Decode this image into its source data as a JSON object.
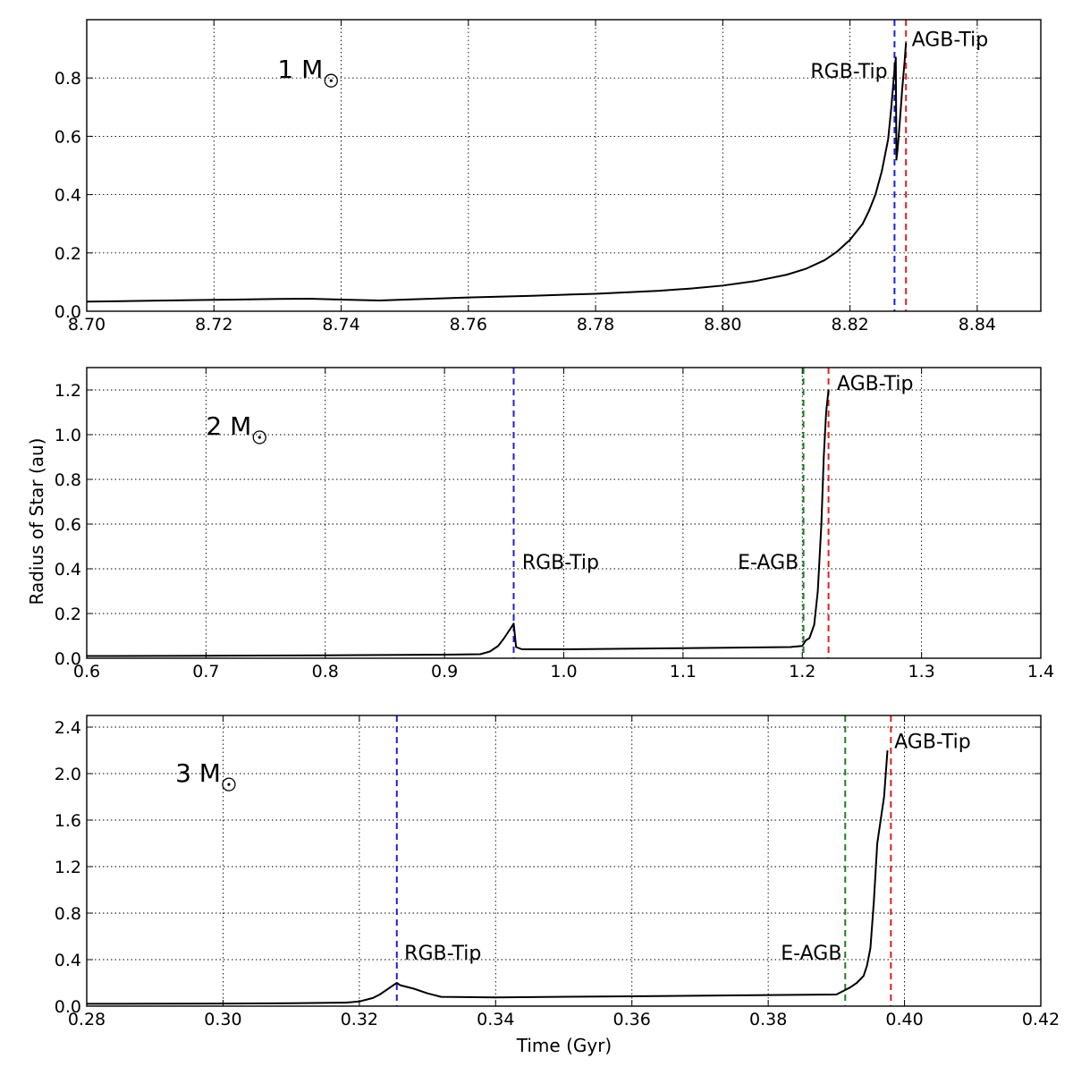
{
  "figure": {
    "ylabel": "Radius of Star (au)",
    "xlabel": "Time (Gyr)"
  },
  "colors": {
    "rgb_tip": "#1f1fd6",
    "e_agb": "#208020",
    "agb_tip": "#e01f1f",
    "curve": "#000000"
  },
  "chart_data": [
    {
      "type": "line",
      "mass_label": "1 M",
      "mass_symbol": "sun-symbol",
      "xlim": [
        8.7,
        8.85
      ],
      "ylim": [
        0.0,
        1.0
      ],
      "xticks": [
        8.7,
        8.72,
        8.74,
        8.76,
        8.78,
        8.8,
        8.82,
        8.84
      ],
      "xtick_labels": [
        "8.70",
        "8.72",
        "8.74",
        "8.76",
        "8.78",
        "8.80",
        "8.82",
        "8.84"
      ],
      "yticks": [
        0.0,
        0.2,
        0.4,
        0.6,
        0.8
      ],
      "ytick_labels": [
        "0.0",
        "0.2",
        "0.4",
        "0.6",
        "0.8"
      ],
      "grid": true,
      "series": [
        {
          "x": [
            8.7,
            8.71,
            8.72,
            8.73,
            8.735,
            8.74,
            8.746,
            8.75,
            8.76,
            8.77,
            8.78,
            8.79,
            8.795,
            8.8,
            8.805,
            8.81,
            8.813,
            8.816,
            8.818,
            8.82,
            8.822,
            8.823,
            8.824,
            8.825,
            8.826,
            8.8265,
            8.827,
            8.8272,
            8.8273,
            8.8275,
            8.8278,
            8.8282,
            8.8286,
            8.8288
          ],
          "y": [
            0.033,
            0.036,
            0.039,
            0.042,
            0.043,
            0.04,
            0.037,
            0.04,
            0.047,
            0.053,
            0.06,
            0.07,
            0.078,
            0.088,
            0.103,
            0.125,
            0.145,
            0.175,
            0.205,
            0.245,
            0.3,
            0.345,
            0.4,
            0.48,
            0.59,
            0.7,
            0.83,
            0.87,
            0.52,
            0.56,
            0.64,
            0.76,
            0.86,
            0.92
          ]
        }
      ],
      "vlines": [
        {
          "name": "RGB-Tip",
          "x": 8.827,
          "color_key": "rgb_tip"
        },
        {
          "name": "AGB-Tip",
          "x": 8.8288,
          "color_key": "agb_tip"
        }
      ],
      "annotations": [
        {
          "text": "RGB-Tip",
          "x": 8.8259,
          "y": 0.8,
          "anchor": "end"
        },
        {
          "text": "AGB-Tip",
          "x": 8.8297,
          "y": 0.91,
          "anchor": "start"
        }
      ],
      "mass_label_pos": {
        "x": 8.73,
        "y": 0.8
      }
    },
    {
      "type": "line",
      "mass_label": "2 M",
      "mass_symbol": "sun-symbol",
      "xlim": [
        0.6,
        1.4
      ],
      "ylim": [
        0.0,
        1.3
      ],
      "xticks": [
        0.6,
        0.7,
        0.8,
        0.9,
        1.0,
        1.1,
        1.2,
        1.3,
        1.4
      ],
      "xtick_labels": [
        "0.6",
        "0.7",
        "0.8",
        "0.9",
        "1.0",
        "1.1",
        "1.2",
        "1.3",
        "1.4"
      ],
      "yticks": [
        0.0,
        0.2,
        0.4,
        0.6,
        0.8,
        1.0,
        1.2
      ],
      "ytick_labels": [
        "0.0",
        "0.2",
        "0.4",
        "0.6",
        "0.8",
        "1.0",
        "1.2"
      ],
      "grid": true,
      "series": [
        {
          "x": [
            0.6,
            0.7,
            0.8,
            0.9,
            0.93,
            0.938,
            0.945,
            0.95,
            0.955,
            0.958,
            0.96,
            0.965,
            1.0,
            1.1,
            1.19,
            1.2,
            1.203,
            1.206,
            1.21,
            1.213,
            1.216,
            1.218,
            1.22,
            1.222
          ],
          "y": [
            0.01,
            0.011,
            0.013,
            0.016,
            0.018,
            0.03,
            0.055,
            0.09,
            0.13,
            0.155,
            0.05,
            0.04,
            0.04,
            0.045,
            0.05,
            0.055,
            0.08,
            0.09,
            0.15,
            0.3,
            0.6,
            0.9,
            1.1,
            1.2
          ]
        }
      ],
      "vlines": [
        {
          "name": "RGB-Tip",
          "x": 0.958,
          "color_key": "rgb_tip"
        },
        {
          "name": "E-AGB",
          "x": 1.201,
          "color_key": "e_agb"
        },
        {
          "name": "AGB-Tip",
          "x": 1.222,
          "color_key": "agb_tip"
        }
      ],
      "annotations": [
        {
          "text": "RGB-Tip",
          "x": 0.965,
          "y": 0.4,
          "anchor": "start"
        },
        {
          "text": "E-AGB",
          "x": 1.197,
          "y": 0.4,
          "anchor": "end"
        },
        {
          "text": "AGB-Tip",
          "x": 1.229,
          "y": 1.2,
          "anchor": "start"
        }
      ],
      "mass_label_pos": {
        "x": 0.7,
        "y": 1.0
      }
    },
    {
      "type": "line",
      "mass_label": "3 M",
      "mass_symbol": "sun-symbol",
      "xlim": [
        0.28,
        0.42
      ],
      "ylim": [
        0.0,
        2.5
      ],
      "xticks": [
        0.28,
        0.3,
        0.32,
        0.34,
        0.36,
        0.38,
        0.4,
        0.42
      ],
      "xtick_labels": [
        "0.28",
        "0.30",
        "0.32",
        "0.34",
        "0.36",
        "0.38",
        "0.40",
        "0.42"
      ],
      "yticks": [
        0.0,
        0.4,
        0.8,
        1.2,
        1.6,
        2.0,
        2.4
      ],
      "ytick_labels": [
        "0.0",
        "0.4",
        "0.8",
        "1.2",
        "1.6",
        "2.0",
        "2.4"
      ],
      "grid": true,
      "series": [
        {
          "x": [
            0.28,
            0.3,
            0.31,
            0.318,
            0.32,
            0.322,
            0.323,
            0.324,
            0.325,
            0.3255,
            0.326,
            0.328,
            0.33,
            0.332,
            0.34,
            0.36,
            0.38,
            0.39,
            0.391,
            0.392,
            0.393,
            0.394,
            0.3945,
            0.395,
            0.3955,
            0.396,
            0.3965,
            0.397,
            0.3975
          ],
          "y": [
            0.02,
            0.022,
            0.025,
            0.03,
            0.04,
            0.07,
            0.1,
            0.14,
            0.18,
            0.2,
            0.18,
            0.15,
            0.11,
            0.08,
            0.075,
            0.085,
            0.095,
            0.1,
            0.13,
            0.16,
            0.2,
            0.26,
            0.35,
            0.5,
            0.9,
            1.4,
            1.6,
            1.8,
            2.2
          ]
        }
      ],
      "vlines": [
        {
          "name": "RGB-Tip",
          "x": 0.3255,
          "color_key": "rgb_tip"
        },
        {
          "name": "E-AGB",
          "x": 0.3913,
          "color_key": "e_agb"
        },
        {
          "name": "AGB-Tip",
          "x": 0.398,
          "color_key": "agb_tip"
        }
      ],
      "annotations": [
        {
          "text": "RGB-Tip",
          "x": 0.3266,
          "y": 0.4,
          "anchor": "start"
        },
        {
          "text": "E-AGB",
          "x": 0.3908,
          "y": 0.4,
          "anchor": "end"
        },
        {
          "text": "AGB-Tip",
          "x": 0.3985,
          "y": 2.22,
          "anchor": "start"
        }
      ],
      "mass_label_pos": {
        "x": 0.293,
        "y": 1.93
      }
    }
  ]
}
